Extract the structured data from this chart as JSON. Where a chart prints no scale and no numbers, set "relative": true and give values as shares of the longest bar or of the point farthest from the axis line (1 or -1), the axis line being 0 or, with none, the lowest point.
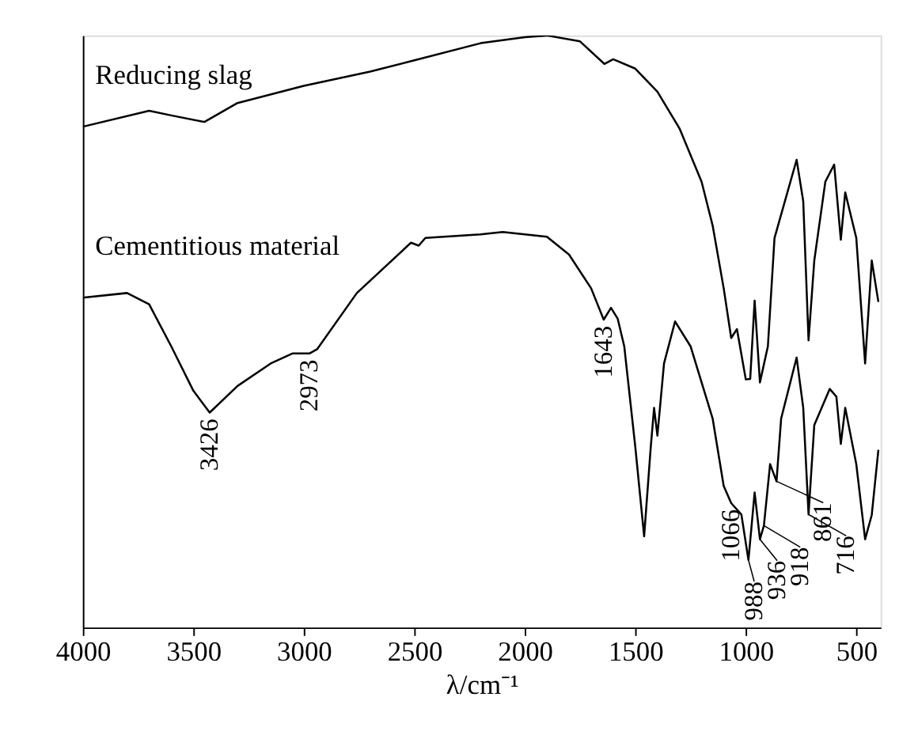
{
  "chart_data": {
    "type": "line",
    "relative": true,
    "xlabel": "λ/cm⁻¹",
    "xlim": [
      4000,
      390
    ],
    "xticks": [
      4000,
      3500,
      3000,
      2500,
      2000,
      1500,
      1000,
      500
    ],
    "grid": false,
    "legend": false,
    "marker": "none",
    "line_style": "solid",
    "series": [
      {
        "name": "Reducing slag",
        "color": "#000000",
        "x": [
          4000,
          3700,
          3600,
          3450,
          3300,
          3000,
          2700,
          2500,
          2200,
          2000,
          1900,
          1750,
          1640,
          1600,
          1500,
          1400,
          1300,
          1200,
          1150,
          1100,
          1066,
          1040,
          1000,
          980,
          960,
          936,
          900,
          870,
          820,
          770,
          740,
          716,
          690,
          640,
          600,
          570,
          550,
          500,
          460,
          430,
          400
        ],
        "values": [
          0.846,
          0.873,
          0.865,
          0.854,
          0.886,
          0.915,
          0.939,
          0.958,
          0.987,
          0.997,
          1.0,
          0.99,
          0.952,
          0.96,
          0.944,
          0.905,
          0.843,
          0.753,
          0.679,
          0.573,
          0.489,
          0.504,
          0.419,
          0.42,
          0.552,
          0.414,
          0.475,
          0.658,
          0.724,
          0.79,
          0.72,
          0.485,
          0.62,
          0.753,
          0.782,
          0.655,
          0.735,
          0.658,
          0.446,
          0.62,
          0.55
        ]
      },
      {
        "name": "Cementitious material",
        "color": "#000000",
        "x": [
          4000,
          3800,
          3700,
          3600,
          3500,
          3426,
          3300,
          3150,
          3050,
          2973,
          2940,
          2760,
          2515,
          2480,
          2450,
          2200,
          2100,
          1900,
          1800,
          1700,
          1643,
          1610,
          1580,
          1550,
          1500,
          1460,
          1430,
          1415,
          1400,
          1370,
          1320,
          1250,
          1150,
          1100,
          1066,
          1020,
          988,
          960,
          936,
          918,
          890,
          861,
          840,
          770,
          740,
          716,
          690,
          620,
          590,
          570,
          550,
          500,
          460,
          430,
          400
        ],
        "values": [
          0.557,
          0.565,
          0.546,
          0.475,
          0.4,
          0.363,
          0.408,
          0.446,
          0.463,
          0.463,
          0.47,
          0.565,
          0.65,
          0.645,
          0.658,
          0.664,
          0.668,
          0.66,
          0.63,
          0.573,
          0.52,
          0.54,
          0.522,
          0.475,
          0.305,
          0.154,
          0.305,
          0.371,
          0.324,
          0.446,
          0.517,
          0.475,
          0.353,
          0.239,
          0.21,
          0.191,
          0.114,
          0.228,
          0.149,
          0.172,
          0.276,
          0.247,
          0.353,
          0.456,
          0.371,
          0.191,
          0.342,
          0.403,
          0.39,
          0.31,
          0.371,
          0.276,
          0.149,
          0.19,
          0.3
        ]
      }
    ],
    "annotations": [
      {
        "text": "3426",
        "x": 3426,
        "y": 0.363
      },
      {
        "text": "2973",
        "x": 2973,
        "y": 0.463
      },
      {
        "text": "1643",
        "x": 1643,
        "y": 0.52
      },
      {
        "text": "1066",
        "x": 1066,
        "y": 0.21
      },
      {
        "text": "988",
        "x": 988,
        "y": 0.114
      },
      {
        "text": "936",
        "x": 936,
        "y": 0.149
      },
      {
        "text": "918",
        "x": 918,
        "y": 0.172
      },
      {
        "text": "861",
        "x": 861,
        "y": 0.247
      },
      {
        "text": "716",
        "x": 716,
        "y": 0.191
      }
    ]
  }
}
